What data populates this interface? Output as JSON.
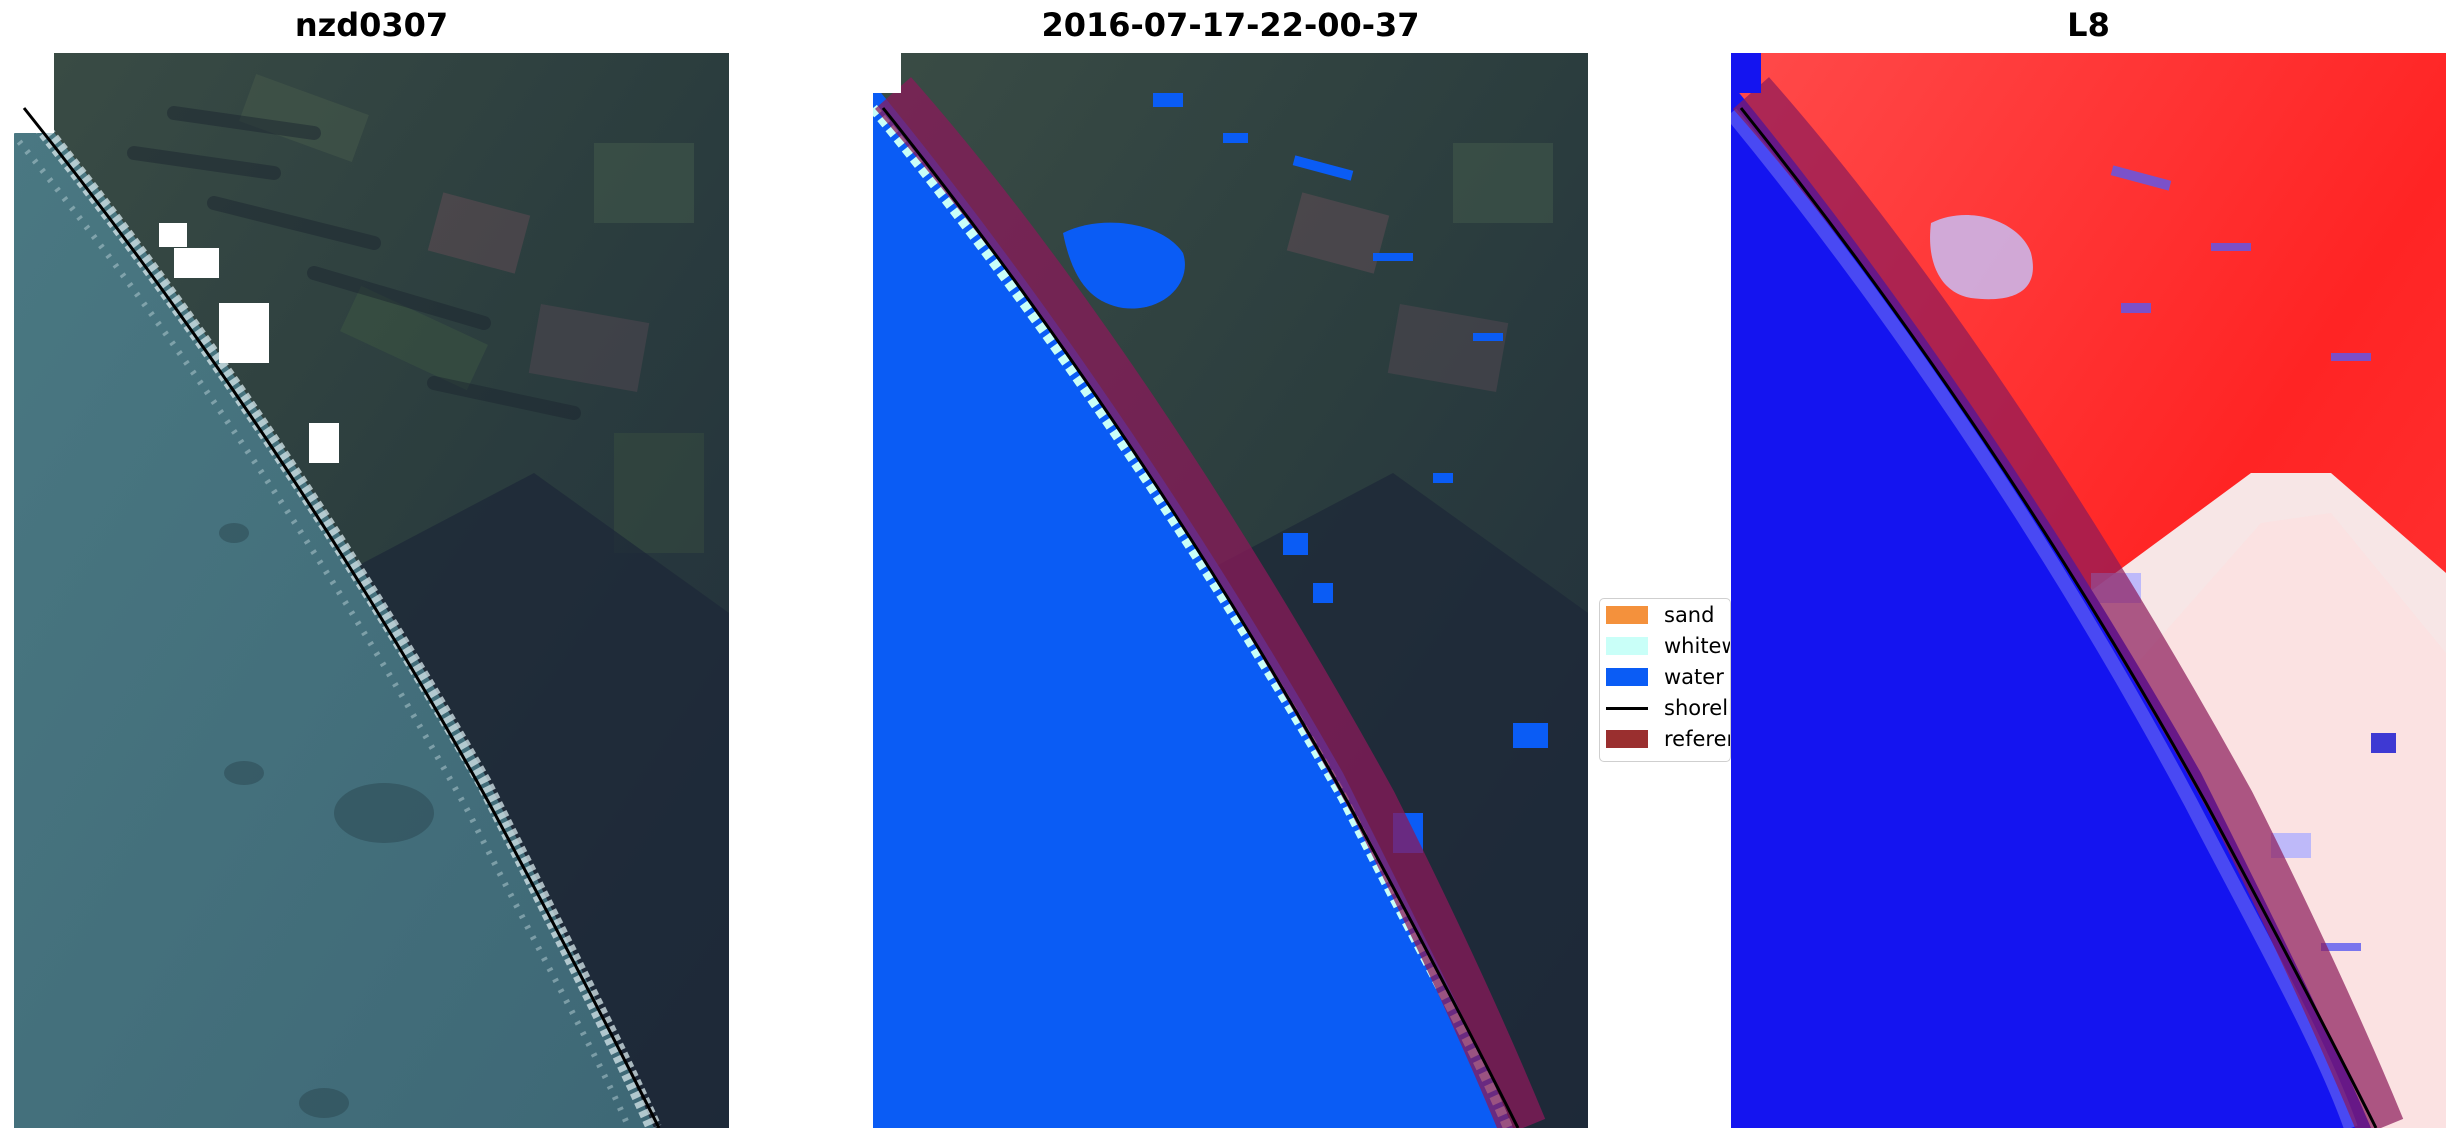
{
  "panels": [
    {
      "title": "nzd0307"
    },
    {
      "title": "2016-07-17-22-00-37"
    },
    {
      "title": "L8"
    }
  ],
  "legend": {
    "items": [
      {
        "label": "sand",
        "color": "#f4913c"
      },
      {
        "label": "whitewater",
        "color": "#c9fff8"
      },
      {
        "label": "water",
        "color": "#0a5cf5"
      },
      {
        "label": "shoreline",
        "color": "#000000"
      },
      {
        "label": "reference",
        "color": "#9a2f2f"
      }
    ]
  },
  "colors": {
    "ocean": "#3f6b78",
    "land": "#22303f",
    "water_class": "#0a5cf5",
    "buffer": "#8a1a5a",
    "index_positive": "#ff2020",
    "index_negative": "#1414f0"
  }
}
